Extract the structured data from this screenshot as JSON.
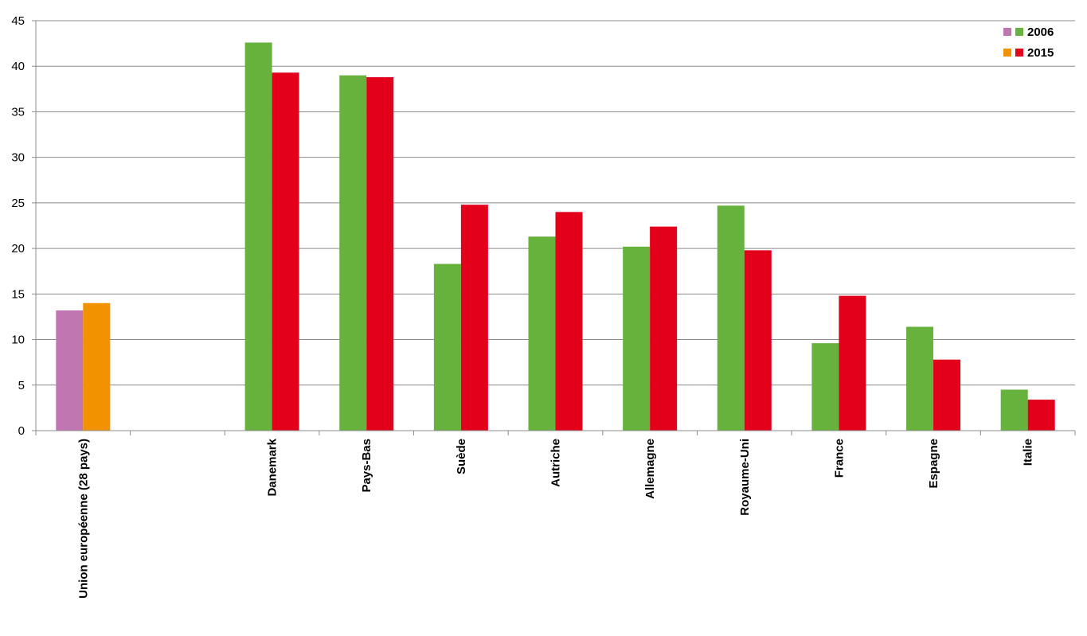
{
  "chart_data": {
    "type": "bar",
    "title": "",
    "xlabel": "",
    "ylabel": "",
    "ylim": [
      0,
      45
    ],
    "yticks": [
      0,
      5,
      10,
      15,
      20,
      25,
      30,
      35,
      40,
      45
    ],
    "grid": true,
    "legend_position": "top-right",
    "categories": [
      "Union européenne (28 pays)",
      "",
      "Danemark",
      "Pays-Bas",
      "Suède",
      "Autriche",
      "Allemagne",
      "Royaume-Uni",
      "France",
      "Espagne",
      "Italie"
    ],
    "series": [
      {
        "name": "2006",
        "values": [
          13.2,
          null,
          42.6,
          39.0,
          18.3,
          21.3,
          20.2,
          24.7,
          9.6,
          11.4,
          4.5
        ],
        "color": "#66b23d",
        "highlight_color": "#c077b1"
      },
      {
        "name": "2015",
        "values": [
          14.0,
          null,
          39.3,
          38.8,
          24.8,
          24.0,
          22.4,
          19.8,
          14.8,
          7.8,
          3.4
        ],
        "color": "#e2001a",
        "highlight_color": "#f39200"
      }
    ],
    "highlight_categories": [
      0
    ]
  }
}
